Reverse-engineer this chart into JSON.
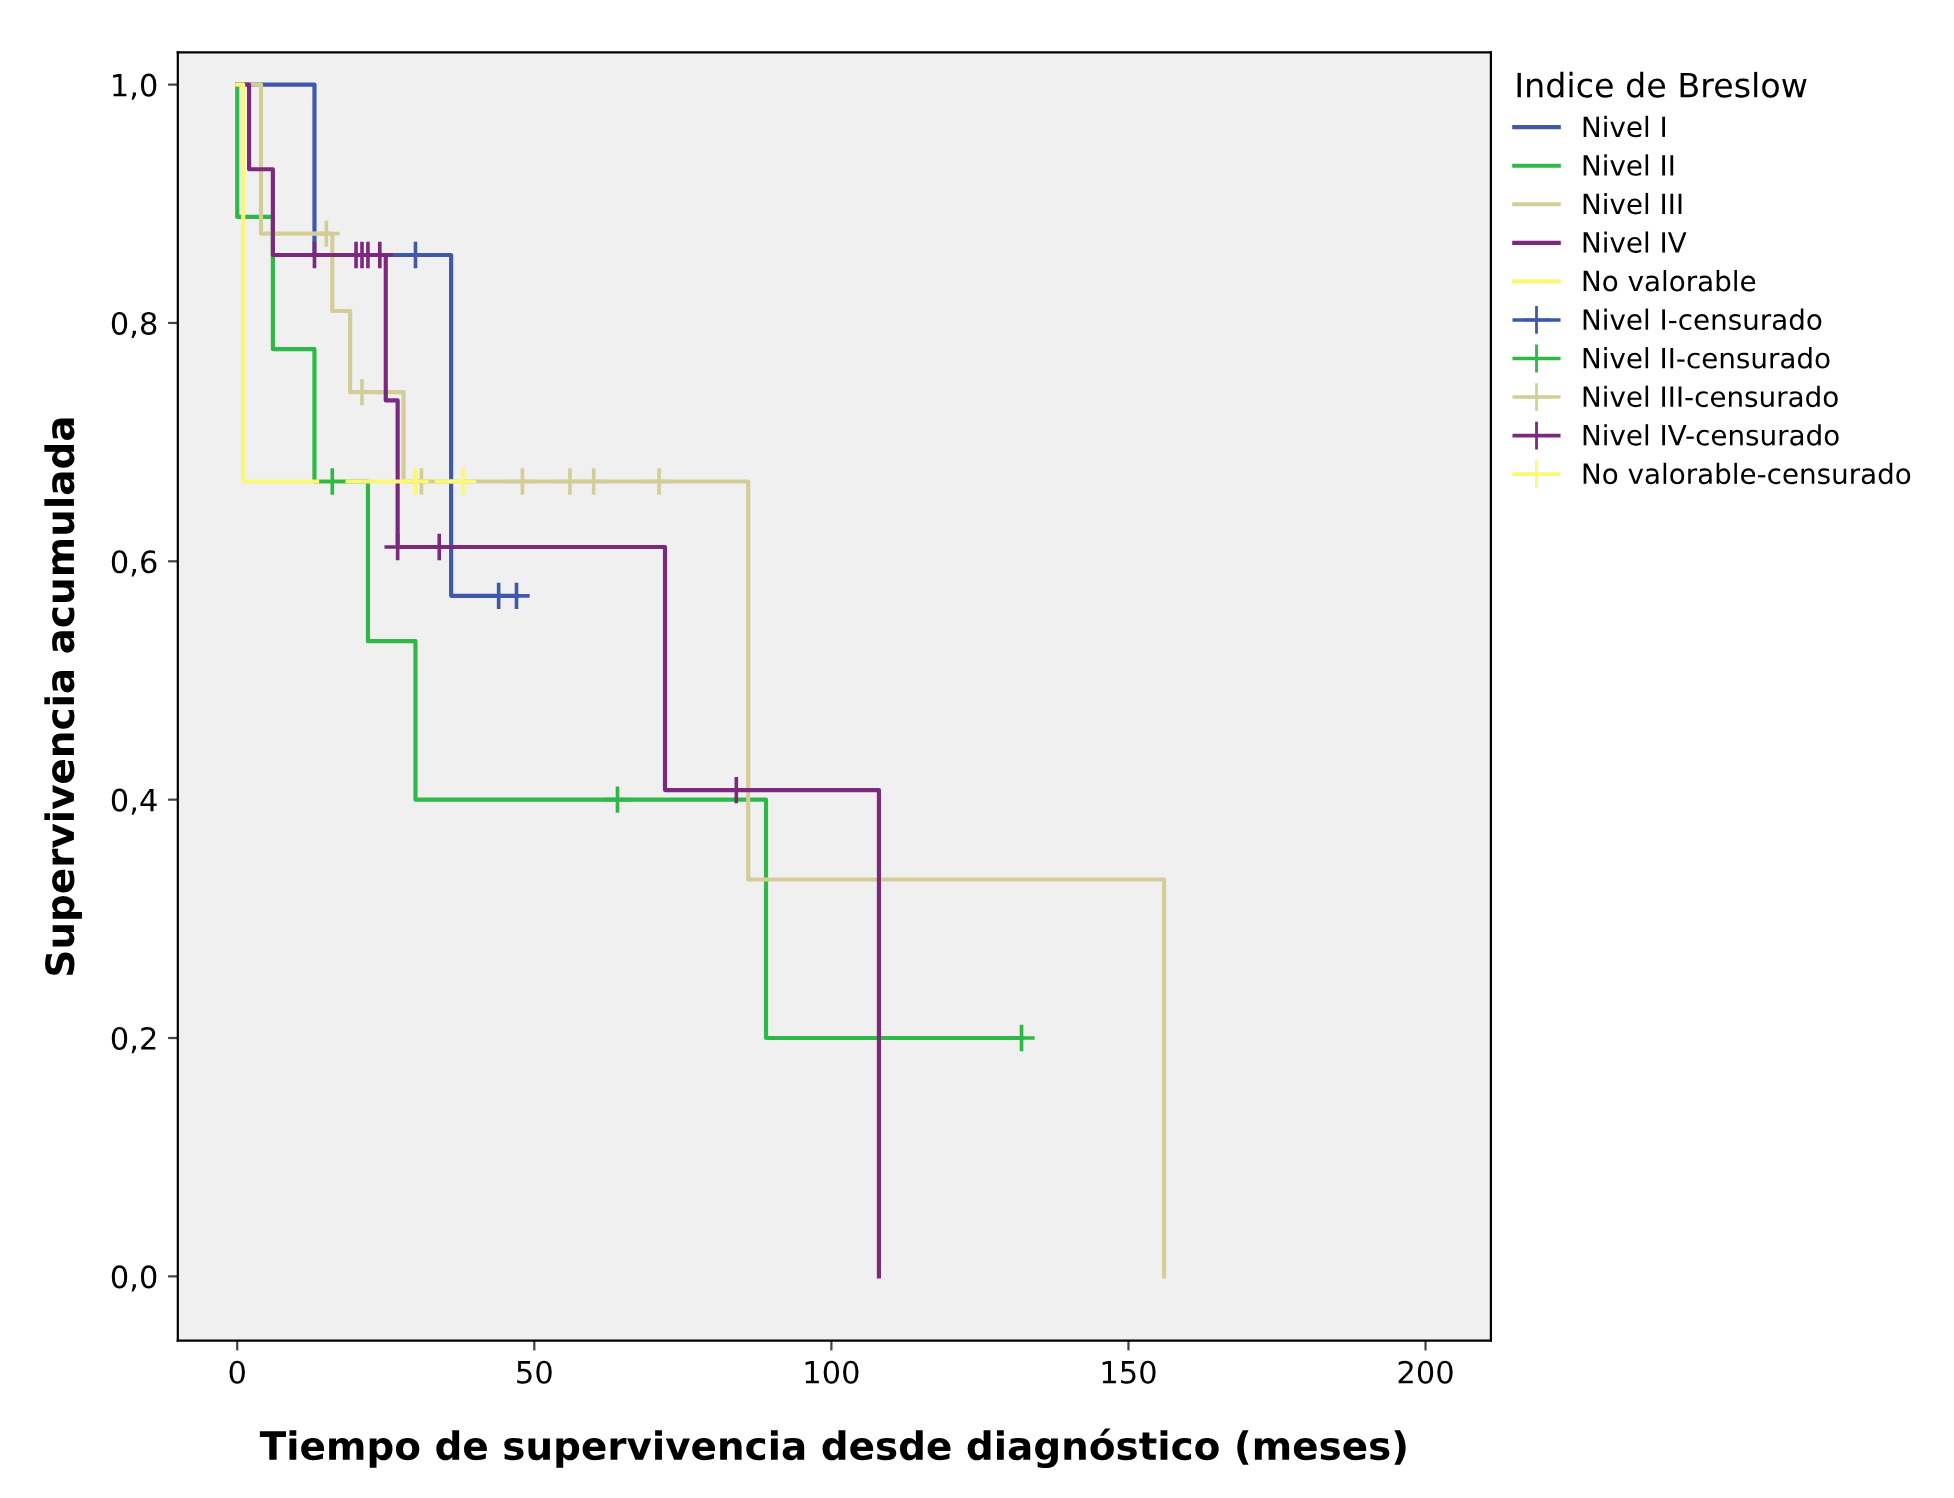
{
  "chart_data": {
    "type": "step",
    "xlabel": "Tiempo de supervivencia desde diagnóstico (meses)",
    "ylabel": "Supervivencia acumulada",
    "legend_title": "Indice de Breslow",
    "legend": "right",
    "xlim": [
      -10,
      211
    ],
    "xticks": [
      0,
      50,
      100,
      150,
      200
    ],
    "ylim": [
      -0.054,
      1.027
    ],
    "yticks": [
      {
        "value": 0,
        "label": "0,0"
      },
      {
        "value": 0.2,
        "label": "0,2"
      },
      {
        "value": 0.4,
        "label": "0,4"
      },
      {
        "value": 0.6,
        "label": "0,6"
      },
      {
        "value": 0.8,
        "label": "0,8"
      },
      {
        "value": 1,
        "label": "1,0"
      }
    ],
    "series": [
      {
        "name": "Nivel I",
        "color": "#3e58ac",
        "x": [
          0,
          13,
          36,
          47
        ],
        "values": [
          1,
          0.857,
          0.571,
          0.571
        ]
      },
      {
        "name": "Nivel II",
        "color": "#2eb848",
        "x": [
          0,
          0,
          6,
          13,
          22,
          30,
          89,
          132
        ],
        "values": [
          1,
          0.889,
          0.778,
          0.667,
          0.533,
          0.4,
          0.2,
          0.2
        ]
      },
      {
        "name": "Nivel III",
        "color": "#d3ce97",
        "x": [
          0,
          4,
          16,
          19,
          28,
          86,
          156
        ],
        "values": [
          1,
          0.875,
          0.81,
          0.742,
          0.667,
          0.333,
          0
        ]
      },
      {
        "name": "Nivel IV",
        "color": "#7c287d",
        "x": [
          0,
          2,
          6,
          25,
          27,
          72,
          108
        ],
        "values": [
          1,
          0.929,
          0.857,
          0.735,
          0.612,
          0.408,
          0
        ]
      },
      {
        "name": "No valorable",
        "color": "#fbf873",
        "x": [
          0,
          1,
          38
        ],
        "values": [
          1,
          0.667,
          0.667
        ]
      },
      {
        "name": "Nivel I-censurado",
        "type": "scatter",
        "marker": "cross",
        "color": "#3e58ac",
        "x": [
          30,
          44,
          47
        ],
        "values": [
          0.857,
          0.571,
          0.571
        ]
      },
      {
        "name": "Nivel II-censurado",
        "type": "scatter",
        "marker": "cross",
        "color": "#2eb848",
        "x": [
          16,
          64,
          132
        ],
        "values": [
          0.667,
          0.4,
          0.2
        ]
      },
      {
        "name": "Nivel III-censurado",
        "type": "scatter",
        "marker": "cross",
        "color": "#d3ce97",
        "x": [
          15,
          21,
          31,
          48,
          56,
          60,
          71
        ],
        "values": [
          0.875,
          0.742,
          0.667,
          0.667,
          0.667,
          0.667,
          0.667
        ]
      },
      {
        "name": "Nivel IV-censurado",
        "type": "scatter",
        "marker": "cross",
        "color": "#7c287d",
        "x": [
          13,
          20,
          21,
          22,
          24,
          27,
          34,
          84
        ],
        "values": [
          0.857,
          0.857,
          0.857,
          0.857,
          0.857,
          0.612,
          0.612,
          0.408
        ]
      },
      {
        "name": "No valorable-censurado",
        "type": "scatter",
        "marker": "cross",
        "color": "#fbf873",
        "x": [
          30,
          38
        ],
        "values": [
          0.667,
          0.667
        ]
      }
    ]
  }
}
